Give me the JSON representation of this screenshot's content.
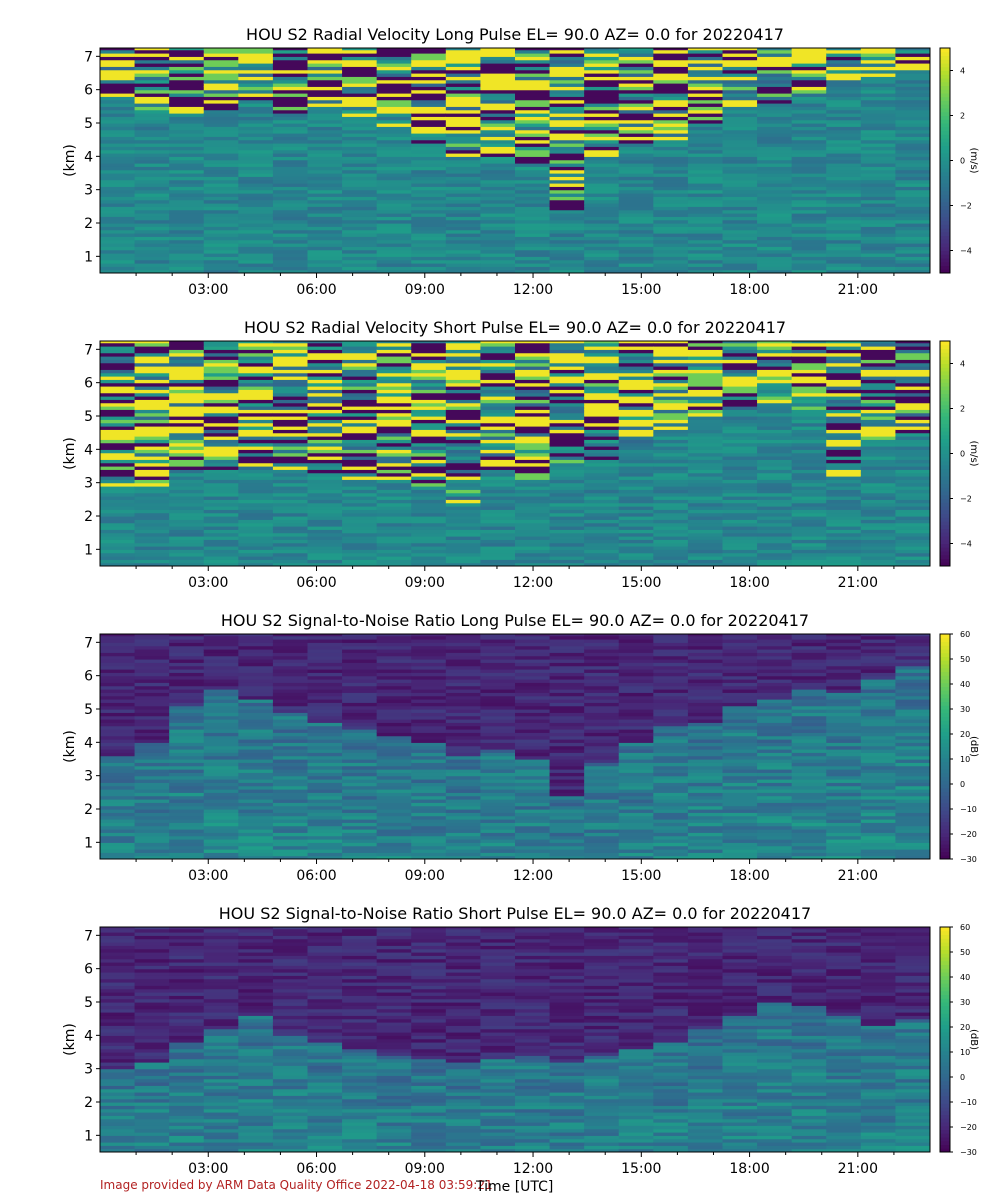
{
  "footer": {
    "credit": "Image provided by ARM Data Quality Office 2022-04-18 03:59:21",
    "xlabel": "Time [UTC]"
  },
  "chart_data": [
    {
      "type": "heatmap",
      "title": "HOU S2 Radial Velocity Long Pulse EL= 90.0 AZ= 0.0 for 20220417",
      "ylabel": "(km)",
      "xlabel": "",
      "colorbar_label": "(m/s)",
      "colormap": "viridis",
      "x_ticks": [
        "03:00",
        "06:00",
        "09:00",
        "12:00",
        "15:00",
        "18:00",
        "21:00"
      ],
      "x_tick_values_hours": [
        3,
        6,
        9,
        12,
        15,
        18,
        21
      ],
      "xlim_hours": [
        0.0,
        23.0
      ],
      "y_ticks": [
        1,
        2,
        3,
        4,
        5,
        6,
        7
      ],
      "ylim_km": [
        0.5,
        7.25
      ],
      "clim": [
        -5,
        5
      ],
      "colorbar_ticks": [
        -4,
        -2,
        0,
        2,
        4
      ],
      "field": "velocity",
      "echo_top_km": [
        5.7,
        5.3,
        5.2,
        5.3,
        5.6,
        5.2,
        5.3,
        5.1,
        4.8,
        4.4,
        4.0,
        3.9,
        3.6,
        2.3,
        3.9,
        4.3,
        4.5,
        4.9,
        5.2,
        5.5,
        5.8,
        6.1,
        6.3,
        6.5
      ]
    },
    {
      "type": "heatmap",
      "title": "HOU S2 Radial Velocity Short Pulse EL= 90.0 AZ= 0.0 for 20220417",
      "ylabel": "(km)",
      "xlabel": "",
      "colorbar_label": "(m/s)",
      "colormap": "viridis",
      "x_ticks": [
        "03:00",
        "06:00",
        "09:00",
        "12:00",
        "15:00",
        "18:00",
        "21:00"
      ],
      "x_tick_values_hours": [
        3,
        6,
        9,
        12,
        15,
        18,
        21
      ],
      "xlim_hours": [
        0.0,
        23.0
      ],
      "y_ticks": [
        1,
        2,
        3,
        4,
        5,
        6,
        7
      ],
      "ylim_km": [
        0.5,
        7.25
      ],
      "clim": [
        -5,
        5
      ],
      "colorbar_ticks": [
        -4,
        -2,
        0,
        2,
        4
      ],
      "field": "velocity",
      "echo_top_km": [
        2.8,
        2.9,
        3.3,
        3.4,
        3.5,
        3.4,
        3.3,
        3.1,
        3.0,
        2.9,
        2.4,
        3.0,
        3.1,
        3.6,
        3.7,
        4.2,
        4.5,
        4.9,
        5.1,
        5.3,
        5.0,
        3.2,
        4.3,
        4.5
      ]
    },
    {
      "type": "heatmap",
      "title": "HOU S2 Signal-to-Noise Ratio Long Pulse EL= 90.0 AZ= 0.0 for 20220417",
      "ylabel": "(km)",
      "xlabel": "",
      "colorbar_label": "(dB)",
      "colormap": "viridis",
      "x_ticks": [
        "03:00",
        "06:00",
        "09:00",
        "12:00",
        "15:00",
        "18:00",
        "21:00"
      ],
      "x_tick_values_hours": [
        3,
        6,
        9,
        12,
        15,
        18,
        21
      ],
      "xlim_hours": [
        0.0,
        23.0
      ],
      "y_ticks": [
        1,
        2,
        3,
        4,
        5,
        6,
        7
      ],
      "ylim_km": [
        0.5,
        7.25
      ],
      "clim": [
        -30,
        60
      ],
      "colorbar_ticks": [
        -30,
        -20,
        -10,
        0,
        10,
        20,
        30,
        40,
        50,
        60
      ],
      "field": "snr",
      "echo_top_km": [
        3.6,
        4.0,
        5.0,
        5.5,
        5.2,
        4.8,
        4.6,
        4.4,
        4.2,
        4.0,
        3.6,
        3.8,
        3.5,
        2.4,
        3.4,
        4.0,
        4.5,
        4.6,
        5.0,
        5.2,
        5.5,
        5.4,
        5.8,
        6.2
      ]
    },
    {
      "type": "heatmap",
      "title": "HOU S2 Signal-to-Noise Ratio Short Pulse EL= 90.0 AZ= 0.0 for 20220417",
      "ylabel": "(km)",
      "xlabel": "",
      "colorbar_label": "(dB)",
      "colormap": "viridis",
      "x_ticks": [
        "03:00",
        "06:00",
        "09:00",
        "12:00",
        "15:00",
        "18:00",
        "21:00"
      ],
      "x_tick_values_hours": [
        3,
        6,
        9,
        12,
        15,
        18,
        21
      ],
      "xlim_hours": [
        0.0,
        23.0
      ],
      "y_ticks": [
        1,
        2,
        3,
        4,
        5,
        6,
        7
      ],
      "ylim_km": [
        0.5,
        7.25
      ],
      "clim": [
        -30,
        60
      ],
      "colorbar_ticks": [
        -30,
        -20,
        -10,
        0,
        10,
        20,
        30,
        40,
        50,
        60
      ],
      "field": "snr",
      "echo_top_km": [
        3.0,
        3.2,
        3.8,
        4.2,
        4.6,
        4.0,
        3.8,
        3.6,
        3.4,
        3.3,
        3.2,
        3.3,
        3.4,
        3.2,
        3.4,
        3.6,
        3.8,
        4.2,
        4.6,
        4.9,
        4.8,
        4.6,
        4.3,
        4.5
      ]
    }
  ]
}
